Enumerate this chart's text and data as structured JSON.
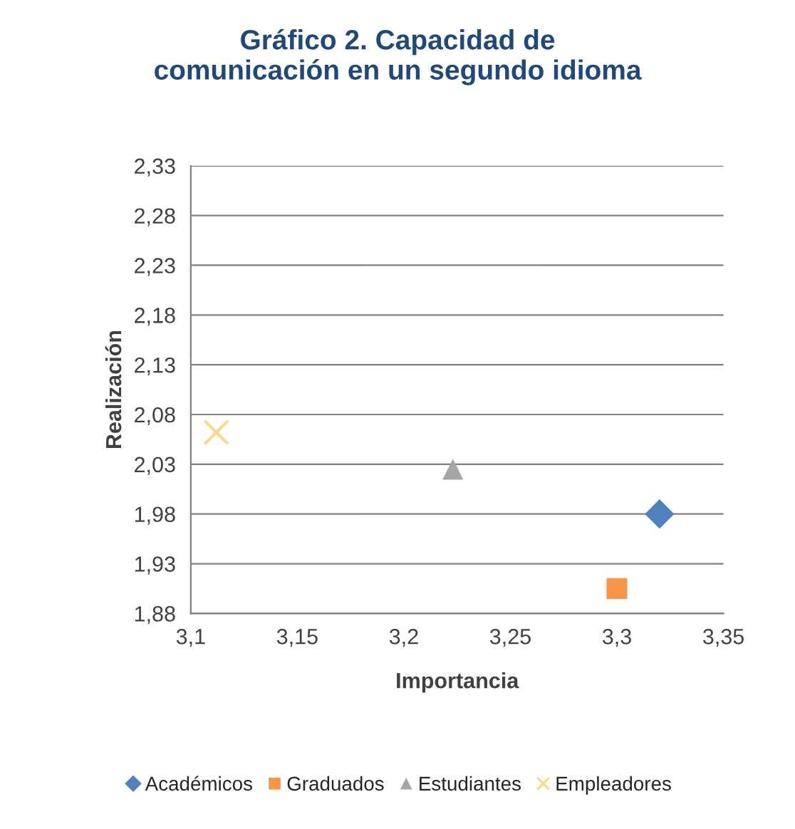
{
  "chart_data": {
    "type": "scatter",
    "title": "Gráfico 2. Capacidad de\ncomunicación en un segundo idioma",
    "xlabel": "Importancia",
    "ylabel": "Realización",
    "series": [
      {
        "name": "Académicos",
        "color": "#4f81bd",
        "marker": "diamond",
        "x": [
          3.32
        ],
        "values": [
          1.98
        ]
      },
      {
        "name": "Graduados",
        "color": "#f79646",
        "marker": "square",
        "x": [
          3.3
        ],
        "values": [
          1.905
        ]
      },
      {
        "name": "Estudiantes",
        "color": "#a5a5a5",
        "marker": "triangle",
        "x": [
          3.223
        ],
        "values": [
          2.025
        ]
      },
      {
        "name": "Empleadores",
        "color": "#f9d98b",
        "marker": "cross",
        "x": [
          3.112
        ],
        "values": [
          2.062
        ]
      }
    ],
    "xlim": [
      3.1,
      3.35
    ],
    "xticks": [
      {
        "value": 3.1,
        "label": "3,1"
      },
      {
        "value": 3.15,
        "label": "3,15"
      },
      {
        "value": 3.2,
        "label": "3,2"
      },
      {
        "value": 3.25,
        "label": "3,25"
      },
      {
        "value": 3.3,
        "label": "3,3"
      },
      {
        "value": 3.35,
        "label": "3,35"
      }
    ],
    "ylim": [
      1.88,
      2.33
    ],
    "yticks": [
      {
        "value": 1.88,
        "label": "1,88"
      },
      {
        "value": 1.93,
        "label": "1,93"
      },
      {
        "value": 1.98,
        "label": "1,98"
      },
      {
        "value": 2.03,
        "label": "2,03"
      },
      {
        "value": 2.08,
        "label": "2,08"
      },
      {
        "value": 2.13,
        "label": "2,13"
      },
      {
        "value": 2.18,
        "label": "2,18"
      },
      {
        "value": 2.23,
        "label": "2,23"
      },
      {
        "value": 2.28,
        "label": "2,28"
      },
      {
        "value": 2.33,
        "label": "2,33"
      }
    ],
    "grid": "y",
    "legend": "bottom"
  }
}
